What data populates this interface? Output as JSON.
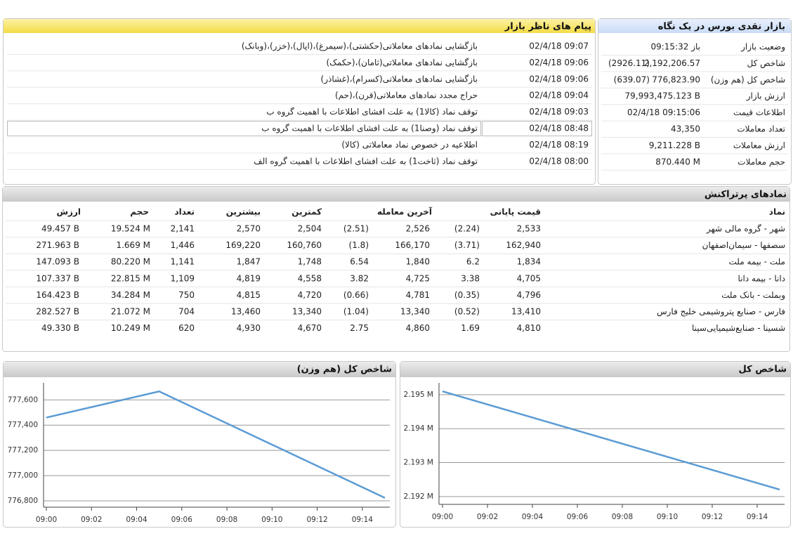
{
  "market_overview": {
    "title": "بازار نقدی بورس در یک نگاه",
    "rows": [
      {
        "label": "وضعیت بازار",
        "value": "باز 09:15:32"
      },
      {
        "label": "شاخص کل",
        "value": "2,192,206.57",
        "change": "(2926.11)"
      },
      {
        "label": "شاخص کل (هم وزن)",
        "value": "776,823.90",
        "change": "(639.07)"
      },
      {
        "label": "ارزش بازار",
        "value": "79,993,475.123 B"
      },
      {
        "label": "اطلاعات قیمت",
        "value": "02/4/18 09:15:06"
      },
      {
        "label": "تعداد معاملات",
        "value": "43,350"
      },
      {
        "label": "ارزش معاملات",
        "value": "9,211.228 B"
      },
      {
        "label": "حجم معاملات",
        "value": "870.440 M"
      }
    ]
  },
  "supervisor_messages": {
    "title": "پیام های ناظر بازار",
    "rows": [
      {
        "time": "02/4/18 09:07",
        "message": "بازگشایی نمادهای معاملاتی(حکشتی)،(سیمرغ)،(اپال)،(خزر)،(وبانک)"
      },
      {
        "time": "02/4/18 09:06",
        "message": "بازگشایی نمادهای معاملاتی(ثامان)،(حکمک)"
      },
      {
        "time": "02/4/18 09:06",
        "message": "بازگشایی نمادهای معاملاتی(کسرام)،(غشاذر)"
      },
      {
        "time": "02/4/18 09:04",
        "message": "حراج مجدد نمادهای معاملاتی(قرن)،(حم)"
      },
      {
        "time": "02/4/18 09:03",
        "message": "توقف نماد (کالا1) به علت افشای اطلاعات با اهمیت گروه ب"
      },
      {
        "time": "02/4/18 08:48",
        "message": "توقف نماد (وصنا1) به علت افشای اطلاعات با اهمیت گروه ب"
      },
      {
        "time": "02/4/18 08:19",
        "message": "اطلاعیه در خصوص نماد معاملاتی (کالا)"
      },
      {
        "time": "02/4/18 08:00",
        "message": "توقف نماد (ثاخت1) به علت افشای اطلاعات با اهمیت گروه الف"
      }
    ]
  },
  "top_symbols": {
    "title": "نمادهای پرتراکنش",
    "headers": [
      "نماد",
      "قیمت پایانی",
      "آخرین معامله",
      "کمترین",
      "بیشترین",
      "تعداد",
      "حجم",
      "ارزش"
    ],
    "rows": [
      [
        "شهر - گروه مالی شهر",
        "2,533",
        "(2.24)",
        "2,526",
        "(2.51)",
        "2,504",
        "2,570",
        "2,141",
        "19.524 M",
        "49.457 B"
      ],
      [
        "سصفها - سیمان‌اصفهان",
        "162,940",
        "(3.71)",
        "166,170",
        "(1.8)",
        "160,760",
        "169,220",
        "1,446",
        "1.669 M",
        "271.963 B"
      ],
      [
        "ملت - بیمه ملت",
        "1,834",
        "6.2",
        "1,840",
        "6.54",
        "1,748",
        "1,847",
        "1,141",
        "80.220 M",
        "147.093 B"
      ],
      [
        "دانا - بیمه دانا",
        "4,705",
        "3.38",
        "4,725",
        "3.82",
        "4,558",
        "4,819",
        "1,109",
        "22.815 M",
        "107.337 B"
      ],
      [
        "وبملت - بانک ملت",
        "4,796",
        "(0.35)",
        "4,781",
        "(0.66)",
        "4,720",
        "4,815",
        "750",
        "34.284 M",
        "164.423 B"
      ],
      [
        "فارس - صنایع پتروشیمی خلیج فارس",
        "13,410",
        "(0.52)",
        "13,340",
        "(1.04)",
        "13,340",
        "13,460",
        "704",
        "21.072 M",
        "282.527 B"
      ],
      [
        "شسینا - صنایع‌شیمیایی‌سینا",
        "4,810",
        "1.69",
        "4,860",
        "2.75",
        "4,670",
        "4,930",
        "620",
        "10.249 M",
        "49.330 B"
      ]
    ]
  },
  "chart_data": [
    {
      "type": "line",
      "title": "شاخص کل (هم وزن)",
      "x": [
        "09:00",
        "09:05",
        "09:15"
      ],
      "series": [
        {
          "color": "#5b9bd5",
          "values": [
            777460,
            777667,
            776823.9
          ]
        }
      ],
      "xlim": [
        "09:00",
        "09:15"
      ],
      "xticks": [
        "09:00",
        "09:02",
        "09:04",
        "09:06",
        "09:08",
        "09:10",
        "09:12",
        "09:14"
      ],
      "ylim": [
        776750,
        777735
      ],
      "yticks": [
        {
          "value": 776800,
          "label": "776,800"
        },
        {
          "value": 777000,
          "label": "777,000"
        },
        {
          "value": 777200,
          "label": "777,200"
        },
        {
          "value": 777400,
          "label": "777,400"
        },
        {
          "value": 777600,
          "label": "777,600"
        }
      ],
      "grid": true
    },
    {
      "type": "line",
      "title": "شاخص کل",
      "x": [
        "09:00",
        "09:15"
      ],
      "series": [
        {
          "color": "#5b9bd5",
          "values": [
            2195100,
            2192206.57
          ]
        }
      ],
      "xlim": [
        "09:00",
        "09:15"
      ],
      "xticks": [
        "09:00",
        "09:02",
        "09:04",
        "09:06",
        "09:08",
        "09:10",
        "09:12",
        "09:14"
      ],
      "ylim": [
        2191770,
        2195350
      ],
      "yticks": [
        {
          "value": 2192000,
          "label": "2.192 M"
        },
        {
          "value": 2193000,
          "label": "2.193 M"
        },
        {
          "value": 2194000,
          "label": "2.194 M"
        },
        {
          "value": 2195000,
          "label": "2.195 M"
        }
      ],
      "grid": true
    }
  ]
}
